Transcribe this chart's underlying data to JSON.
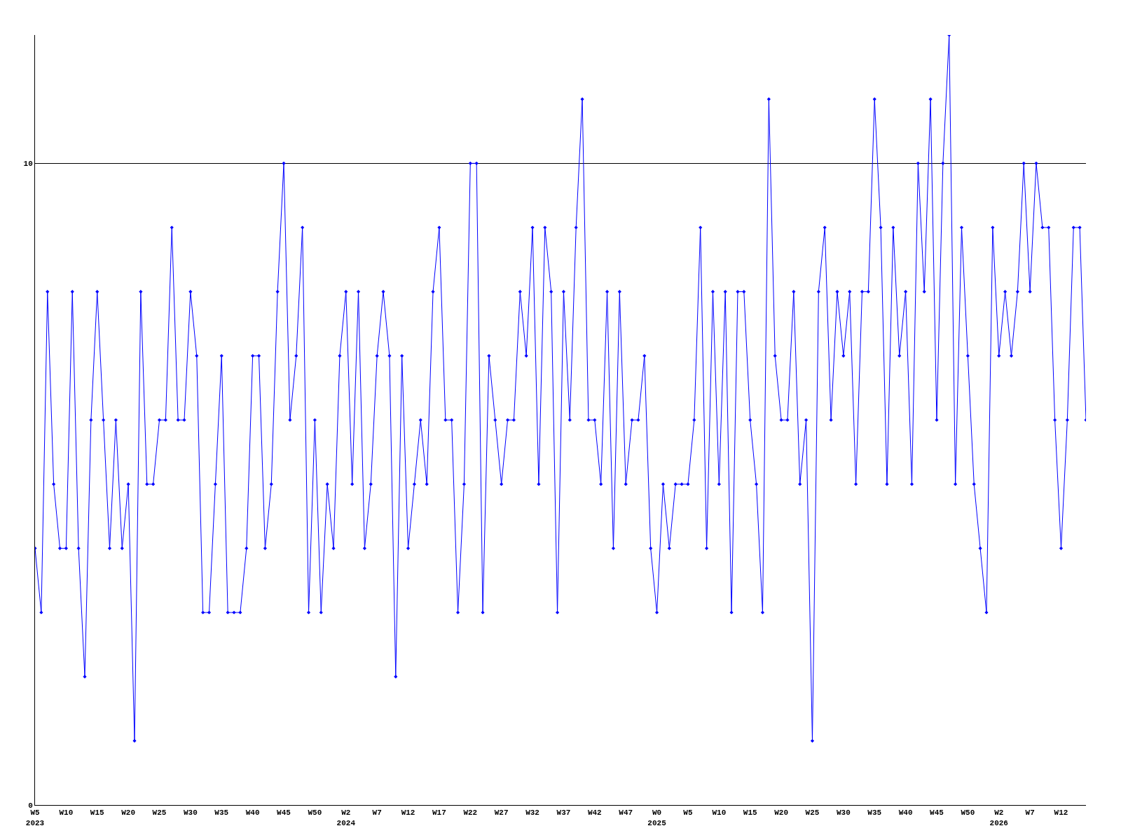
{
  "chart_data": {
    "type": "line",
    "categories": [
      "W5\n2023",
      null,
      null,
      null,
      null,
      "W10",
      null,
      null,
      null,
      null,
      "W15",
      null,
      null,
      null,
      null,
      "W20",
      null,
      null,
      null,
      null,
      "W25",
      null,
      null,
      null,
      null,
      "W30",
      null,
      null,
      null,
      null,
      "W35",
      null,
      null,
      null,
      null,
      "W40",
      null,
      null,
      null,
      null,
      "W45",
      null,
      null,
      null,
      null,
      "W50",
      null,
      null,
      null,
      null,
      "W2\n2024",
      null,
      null,
      null,
      null,
      "W7",
      null,
      null,
      null,
      null,
      "W12",
      null,
      null,
      null,
      null,
      "W17",
      null,
      null,
      null,
      null,
      "W22",
      null,
      null,
      null,
      null,
      "W27",
      null,
      null,
      null,
      null,
      "W32",
      null,
      null,
      null,
      null,
      "W37",
      null,
      null,
      null,
      null,
      "W42",
      null,
      null,
      null,
      null,
      "W47",
      null,
      null,
      null,
      null,
      "W0\n2025",
      null,
      null,
      null,
      null,
      "W5",
      null,
      null,
      null,
      null,
      "W10",
      null,
      null,
      null,
      null,
      "W15",
      null,
      null,
      null,
      null,
      "W20",
      null,
      null,
      null,
      null,
      "W25",
      null,
      null,
      null,
      null,
      "W30",
      null,
      null,
      null,
      null,
      "W35",
      null,
      null,
      null,
      null,
      "W40",
      null,
      null,
      null,
      null,
      "W45",
      null,
      null,
      null,
      null,
      "W50",
      null,
      null,
      null,
      null,
      "W2\n2026",
      null,
      null,
      null,
      null,
      "W7",
      null,
      null,
      null,
      null,
      "W12",
      null,
      null,
      null,
      null
    ],
    "series": [
      {
        "color": "#0000ff",
        "values": [
          4,
          3,
          8,
          5,
          4,
          4,
          8,
          4,
          2,
          6,
          8,
          6,
          4,
          6,
          4,
          5,
          1,
          8,
          5,
          5,
          6,
          6,
          9,
          6,
          6,
          8,
          7,
          3,
          3,
          5,
          7,
          3,
          3,
          3,
          4,
          7,
          7,
          4,
          5,
          8,
          10,
          6,
          7,
          9,
          3,
          6,
          3,
          5,
          4,
          7,
          8,
          5,
          8,
          4,
          5,
          7,
          8,
          7,
          2,
          7,
          4,
          5,
          6,
          5,
          8,
          9,
          6,
          6,
          3,
          5,
          10,
          10,
          3,
          7,
          6,
          5,
          6,
          6,
          8,
          7,
          9,
          5,
          9,
          8,
          3,
          8,
          6,
          9,
          11,
          6,
          6,
          5,
          8,
          4,
          8,
          5,
          6,
          6,
          7,
          4,
          3,
          5,
          4,
          5,
          5,
          5,
          6,
          9,
          4,
          8,
          5,
          8,
          3,
          8,
          8,
          6,
          5,
          3,
          11,
          7,
          6,
          6,
          8,
          5,
          6,
          1,
          8,
          9,
          6,
          8,
          7,
          8,
          5,
          8,
          8,
          11,
          9,
          5,
          9,
          7,
          8,
          5,
          10,
          8,
          11,
          6,
          10,
          12,
          5,
          9,
          7,
          5,
          4,
          3,
          9,
          7,
          8,
          7,
          8,
          10,
          8,
          10,
          9,
          9,
          6,
          4,
          6,
          9,
          9,
          6
        ]
      }
    ],
    "ylim": [
      0,
      12
    ],
    "yticks": [
      0,
      10
    ],
    "grid": "y",
    "marker": "diamond",
    "line_style": "solid"
  }
}
